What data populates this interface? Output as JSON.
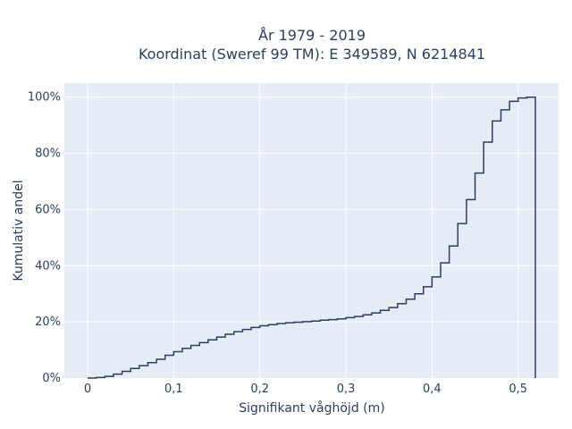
{
  "chart_data": {
    "type": "line",
    "subtype": "ecdf-step",
    "title_line1": "År 1979 - 2019",
    "title_line2": "Koordinat (Sweref 99 TM): E 349589, N 6214841",
    "xlabel": "Signifikant våghöjd (m)",
    "ylabel": "Kumulativ andel",
    "xlim": [
      -0.027,
      0.547
    ],
    "ylim": [
      0,
      1.05
    ],
    "x_ticks": [
      0,
      0.1,
      0.2,
      0.3,
      0.4,
      0.5
    ],
    "x_tick_labels": [
      "0",
      "0,1",
      "0,2",
      "0,3",
      "0,4",
      "0,5"
    ],
    "y_ticks": [
      0,
      0.2,
      0.4,
      0.6,
      0.8,
      1.0
    ],
    "y_tick_labels": [
      "0%",
      "20%",
      "40%",
      "60%",
      "80%",
      "100%"
    ],
    "grid": true,
    "line_color": "#2a3f5f",
    "plot_bg": "#e5ecf6",
    "series": [
      {
        "step_width": 0.01,
        "x": [
          0,
          0.01,
          0.02,
          0.03,
          0.04,
          0.05,
          0.06,
          0.07,
          0.08,
          0.09,
          0.1,
          0.11,
          0.12,
          0.13,
          0.14,
          0.15,
          0.16,
          0.17,
          0.18,
          0.19,
          0.2,
          0.21,
          0.22,
          0.23,
          0.24,
          0.25,
          0.26,
          0.27,
          0.28,
          0.29,
          0.3,
          0.31,
          0.32,
          0.33,
          0.34,
          0.35,
          0.36,
          0.37,
          0.38,
          0.39,
          0.4,
          0.41,
          0.42,
          0.43,
          0.44,
          0.45,
          0.46,
          0.47,
          0.48,
          0.49,
          0.5,
          0.51
        ],
        "y": [
          0.0,
          0.002,
          0.006,
          0.014,
          0.024,
          0.034,
          0.044,
          0.055,
          0.067,
          0.081,
          0.094,
          0.106,
          0.116,
          0.126,
          0.136,
          0.146,
          0.156,
          0.165,
          0.173,
          0.18,
          0.186,
          0.19,
          0.194,
          0.197,
          0.199,
          0.201,
          0.203,
          0.206,
          0.208,
          0.211,
          0.215,
          0.219,
          0.225,
          0.232,
          0.241,
          0.251,
          0.265,
          0.281,
          0.3,
          0.325,
          0.36,
          0.41,
          0.47,
          0.55,
          0.635,
          0.73,
          0.84,
          0.915,
          0.955,
          0.985,
          0.997,
          1.0
        ]
      }
    ]
  }
}
